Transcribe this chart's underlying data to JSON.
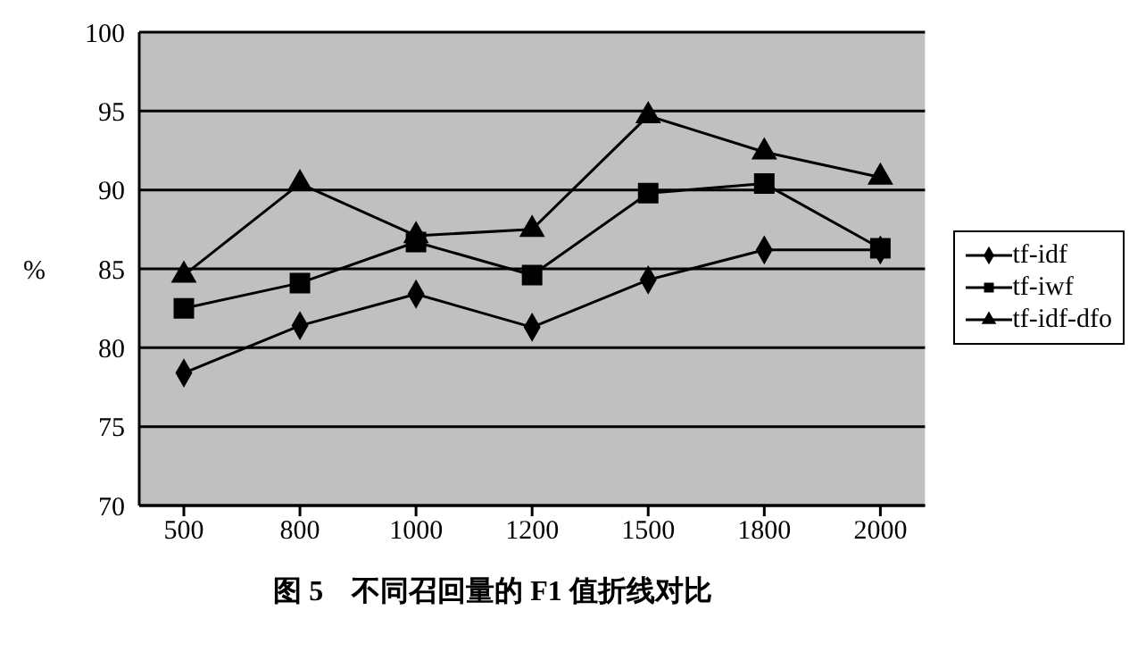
{
  "chart_data": {
    "type": "line",
    "title": "图 5　不同召回量的 F1 值折线对比",
    "ylabel": "%",
    "categories": [
      "500",
      "800",
      "1000",
      "1200",
      "1500",
      "1800",
      "2000"
    ],
    "series": [
      {
        "name": "tf-idf",
        "color": "#000000",
        "marker": "diamond",
        "values": [
          78.4,
          81.4,
          83.4,
          81.3,
          84.3,
          86.2,
          86.2
        ]
      },
      {
        "name": "tf-iwf",
        "color": "#000000",
        "marker": "square",
        "values": [
          82.5,
          84.1,
          86.7,
          84.6,
          89.8,
          90.4,
          86.3
        ]
      },
      {
        "name": "tf-idf-dfo",
        "color": "#000000",
        "marker": "triangle",
        "values": [
          84.6,
          90.4,
          87.1,
          87.5,
          94.7,
          92.4,
          90.8
        ]
      }
    ],
    "ylim": [
      70,
      100
    ],
    "yticks": [
      70,
      75,
      80,
      85,
      90,
      95,
      100
    ],
    "grid": "y",
    "legend": "right"
  }
}
